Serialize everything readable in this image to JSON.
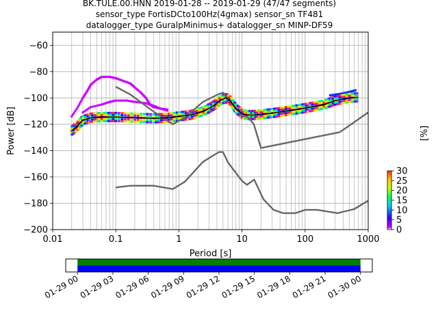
{
  "title": {
    "line1": "BK.TULE.00.HNN   2019-01-28 -- 2019-01-29  (47/47 segments)",
    "line2": "sensor_type FortisDCto100Hz(4gmax) sensor_sn TF481",
    "line3": "datalogger_type GuralpMinimus+ datalogger_sn MINP-DF59"
  },
  "chart_data": [
    {
      "type": "heatmap",
      "title": "BK.TULE.00.HNN   2019-01-28 -- 2019-01-29  (47/47 segments)",
      "xlabel": "Period [s]",
      "ylabel": "Power [dB]",
      "xscale": "log",
      "xlim": [
        0.01,
        1000
      ],
      "ylim": [
        -200,
        -50
      ],
      "xtick_labels": [
        "0.01",
        "0.1",
        "1",
        "10",
        "100",
        "1000"
      ],
      "xticks": [
        0.01,
        0.1,
        1,
        10,
        100,
        1000
      ],
      "yticks": [
        -200,
        -180,
        -160,
        -140,
        -120,
        -100,
        -80,
        -60
      ],
      "ytick_labels": [
        "−200",
        "−180",
        "−160",
        "−140",
        "−120",
        "−100",
        "−80",
        "−60"
      ],
      "grid": true,
      "colorbar": {
        "label": "[%]",
        "ticks": [
          0,
          5,
          10,
          15,
          20,
          25,
          30
        ],
        "range": [
          0,
          30
        ],
        "colormap": [
          "#ffffff",
          "#cc00ff",
          "#3300ff",
          "#00ccff",
          "#00ff66",
          "#ccff00",
          "#ffcc00",
          "#ff3300"
        ]
      },
      "series": [
        {
          "role": "mode",
          "color": "#000000",
          "x": [
            0.02,
            0.025,
            0.03,
            0.04,
            0.06,
            0.1,
            0.2,
            0.4,
            0.7,
            1,
            1.5,
            2.5,
            3.5,
            4.5,
            5.5,
            6.5,
            8,
            10,
            12,
            15,
            20,
            30,
            50,
            80,
            120,
            200,
            300,
            500,
            700
          ],
          "y": [
            -125,
            -121,
            -117,
            -115,
            -114.5,
            -114.5,
            -115,
            -115.5,
            -115,
            -114,
            -113,
            -110,
            -106,
            -102,
            -100,
            -102,
            -108,
            -112,
            -113,
            -113,
            -112.5,
            -111.5,
            -110,
            -108.5,
            -107,
            -105,
            -102,
            -100,
            -99.5
          ]
        },
        {
          "role": "density",
          "color": "#cc00ff",
          "x": [
            0.02,
            0.025,
            0.03,
            0.035,
            0.04,
            0.05,
            0.06,
            0.08,
            0.1,
            0.13,
            0.17,
            0.2,
            0.25,
            0.3,
            0.35,
            0.4,
            0.5,
            0.7
          ],
          "y": [
            -114,
            -107,
            -100,
            -95,
            -90,
            -86,
            -84,
            -84,
            -85,
            -87,
            -89,
            -92,
            -96,
            -100,
            -105,
            -107,
            -108,
            -109
          ]
        },
        {
          "role": "density",
          "color": "#cc00ff",
          "x": [
            0.03,
            0.04,
            0.06,
            0.08,
            0.1,
            0.15,
            0.2,
            0.3,
            0.4,
            0.5,
            0.7
          ],
          "y": [
            -111,
            -107,
            -105,
            -103,
            -102,
            -102,
            -103,
            -104,
            -106,
            -108,
            -110
          ]
        },
        {
          "role": "density",
          "color": "#0033ff",
          "x": [
            250,
            350,
            450,
            550,
            650
          ],
          "y": [
            -98,
            -97,
            -96,
            -95,
            -94
          ]
        },
        {
          "role": "model",
          "name": "",
          "color": "#666666",
          "x": [
            0.1,
            0.17,
            0.4,
            0.8,
            1.24,
            2.4,
            4.3,
            5,
            6,
            10,
            12.6,
            15.4,
            20,
            354.8
          ],
          "y": [
            -91.5,
            -97.4,
            -110.5,
            -120,
            -115,
            -103,
            -97,
            -96,
            -101,
            -113,
            -115,
            -120,
            -138,
            -126
          ]
        },
        {
          "role": "model",
          "name": "",
          "color": "#666666",
          "x": [
            354.8,
            1000
          ],
          "y": [
            -126,
            -111
          ]
        },
        {
          "role": "model",
          "name": "",
          "color": "#666666",
          "x": [
            0.1,
            0.17,
            0.4,
            0.8,
            1.24,
            2.4,
            4.3,
            5,
            6,
            10,
            12,
            15.6,
            21.9,
            31.6,
            45,
            70,
            101,
            154,
            328,
            600,
            1000
          ],
          "y": [
            -168,
            -166.7,
            -166.7,
            -169.2,
            -163.7,
            -148.6,
            -141.1,
            -141.1,
            -149,
            -163,
            -166,
            -162,
            -177,
            -185,
            -187.5,
            -187.5,
            -185,
            -185,
            -187.5,
            -184.4,
            -178
          ]
        }
      ]
    },
    {
      "type": "timeline",
      "xlim": [
        "2019-01-28 23:00",
        "2019-01-30 01:00"
      ],
      "xtick_labels": [
        "01-29 00",
        "01-29 03",
        "01-29 06",
        "01-29 09",
        "01-29 12",
        "01-29 15",
        "01-29 18",
        "01-29 21",
        "01-30 00"
      ],
      "bars": [
        {
          "start": "2019-01-29 00:00",
          "end": "2019-01-30 00:00",
          "color": "#008000"
        },
        {
          "start": "2019-01-29 00:00",
          "end": "2019-01-30 00:00",
          "color": "#0000ff"
        }
      ]
    }
  ]
}
